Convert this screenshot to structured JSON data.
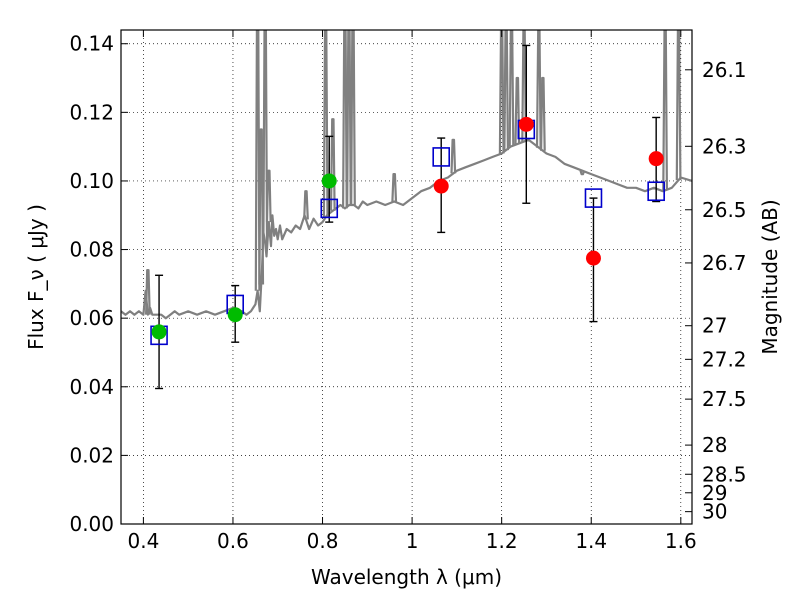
{
  "chart_data": {
    "type": "scatter",
    "xlabel": "Wavelength  λ (μm)",
    "ylabel": "Flux  F_ν  ( μJy )",
    "y2label": "Magnitude (AB)",
    "xlim": [
      0.35,
      1.625
    ],
    "ylim": [
      0.0,
      0.144
    ],
    "grid": true,
    "x_ticks": [
      {
        "value": 0.4,
        "label": "0.4"
      },
      {
        "value": 0.6,
        "label": "0.6"
      },
      {
        "value": 0.8,
        "label": "0.8"
      },
      {
        "value": 1.0,
        "label": "1"
      },
      {
        "value": 1.2,
        "label": "1.2"
      },
      {
        "value": 1.4,
        "label": "1.4"
      },
      {
        "value": 1.6,
        "label": "1.6"
      }
    ],
    "y_ticks": [
      {
        "value": 0.0,
        "label": "0.00"
      },
      {
        "value": 0.02,
        "label": "0.02"
      },
      {
        "value": 0.04,
        "label": "0.04"
      },
      {
        "value": 0.06,
        "label": "0.06"
      },
      {
        "value": 0.08,
        "label": "0.08"
      },
      {
        "value": 0.1,
        "label": "0.10"
      },
      {
        "value": 0.12,
        "label": "0.12"
      },
      {
        "value": 0.14,
        "label": "0.14"
      }
    ],
    "y2_ticks": [
      {
        "label": "26.1",
        "flux": 0.1324
      },
      {
        "label": "26.3",
        "flux": 0.1101
      },
      {
        "label": "26.5",
        "flux": 0.0916
      },
      {
        "label": "26.7",
        "flux": 0.0761
      },
      {
        "label": "27",
        "flux": 0.0578
      },
      {
        "label": "27.2",
        "flux": 0.048
      },
      {
        "label": "27.5",
        "flux": 0.0364
      },
      {
        "label": "28",
        "flux": 0.023
      },
      {
        "label": "28.5",
        "flux": 0.0145
      },
      {
        "label": "29",
        "flux": 0.0091
      },
      {
        "label": "30",
        "flux": 0.0036
      }
    ],
    "series": [
      {
        "color": "#808080",
        "kind": "line",
        "x": [
          0.35,
          0.36,
          0.37,
          0.38,
          0.39,
          0.4,
          0.405,
          0.41,
          0.415,
          0.42,
          0.43,
          0.44,
          0.45,
          0.46,
          0.47,
          0.48,
          0.5,
          0.52,
          0.54,
          0.56,
          0.58,
          0.6,
          0.62,
          0.63,
          0.64,
          0.645,
          0.65,
          0.655,
          0.66,
          0.665,
          0.668,
          0.672,
          0.675,
          0.68,
          0.685,
          0.688,
          0.692,
          0.696,
          0.7,
          0.705,
          0.71,
          0.72,
          0.73,
          0.74,
          0.75,
          0.76,
          0.77,
          0.78,
          0.79,
          0.8,
          0.81,
          0.82,
          0.83,
          0.84,
          0.85,
          0.86,
          0.87,
          0.88,
          0.89,
          0.9,
          0.92,
          0.94,
          0.96,
          0.98,
          1.0,
          1.02,
          1.04,
          1.06,
          1.08,
          1.1,
          1.12,
          1.14,
          1.16,
          1.18,
          1.2,
          1.22,
          1.24,
          1.26,
          1.28,
          1.3,
          1.32,
          1.34,
          1.36,
          1.38,
          1.4,
          1.42,
          1.44,
          1.46,
          1.48,
          1.5,
          1.52,
          1.54,
          1.56,
          1.58,
          1.6,
          1.625
        ],
        "y": [
          0.062,
          0.061,
          0.062,
          0.061,
          0.062,
          0.061,
          0.068,
          0.061,
          0.063,
          0.061,
          0.061,
          0.061,
          0.06,
          0.061,
          0.062,
          0.061,
          0.062,
          0.061,
          0.062,
          0.061,
          0.062,
          0.063,
          0.062,
          0.061,
          0.062,
          0.063,
          0.064,
          0.068,
          0.062,
          0.075,
          0.085,
          0.082,
          0.078,
          0.088,
          0.081,
          0.09,
          0.084,
          0.086,
          0.083,
          0.087,
          0.083,
          0.086,
          0.085,
          0.087,
          0.086,
          0.09,
          0.086,
          0.089,
          0.087,
          0.088,
          0.09,
          0.091,
          0.092,
          0.093,
          0.092,
          0.093,
          0.093,
          0.092,
          0.094,
          0.093,
          0.094,
          0.093,
          0.094,
          0.093,
          0.095,
          0.097,
          0.098,
          0.1,
          0.101,
          0.103,
          0.104,
          0.105,
          0.106,
          0.107,
          0.108,
          0.11,
          0.111,
          0.112,
          0.11,
          0.108,
          0.107,
          0.105,
          0.104,
          0.103,
          0.102,
          0.101,
          0.1,
          0.099,
          0.098,
          0.098,
          0.097,
          0.098,
          0.097,
          0.098,
          0.101,
          0.1
        ]
      },
      {
        "color": "#808080",
        "kind": "spikes",
        "x": [
          0.41,
          0.655,
          0.663,
          0.672,
          0.68,
          0.763,
          0.807,
          0.823,
          0.85,
          0.859,
          0.868,
          0.96,
          1.092,
          1.2,
          1.21,
          1.222,
          1.235,
          1.25,
          1.283,
          1.292,
          1.38,
          1.565,
          1.595
        ],
        "y": [
          0.074,
          0.144,
          0.115,
          0.144,
          0.103,
          0.097,
          0.144,
          0.118,
          0.144,
          0.144,
          0.144,
          0.102,
          0.112,
          0.144,
          0.144,
          0.144,
          0.13,
          0.144,
          0.144,
          0.13,
          0.102,
          0.144,
          0.144
        ]
      },
      {
        "kind": "model-boxes",
        "color": "#0000cc",
        "x": [
          0.435,
          0.605,
          0.815,
          1.065,
          1.255,
          1.405,
          1.545
        ],
        "y": [
          0.055,
          0.064,
          0.092,
          0.107,
          0.115,
          0.095,
          0.097
        ]
      },
      {
        "kind": "points",
        "color": "#00bb00",
        "x": [
          0.435,
          0.605,
          0.815
        ],
        "y": [
          0.056,
          0.061,
          0.1
        ],
        "err_low": [
          0.0395,
          0.053,
          0.088
        ],
        "err_high": [
          0.0725,
          0.0695,
          0.113
        ]
      },
      {
        "kind": "points",
        "color": "#ff0000",
        "x": [
          1.065,
          1.255,
          1.405,
          1.545
        ],
        "y": [
          0.0985,
          0.1165,
          0.0775,
          0.1065
        ],
        "err_low": [
          0.085,
          0.0935,
          0.059,
          0.094
        ],
        "err_high": [
          0.1125,
          0.1395,
          0.095,
          0.1185
        ]
      }
    ]
  }
}
